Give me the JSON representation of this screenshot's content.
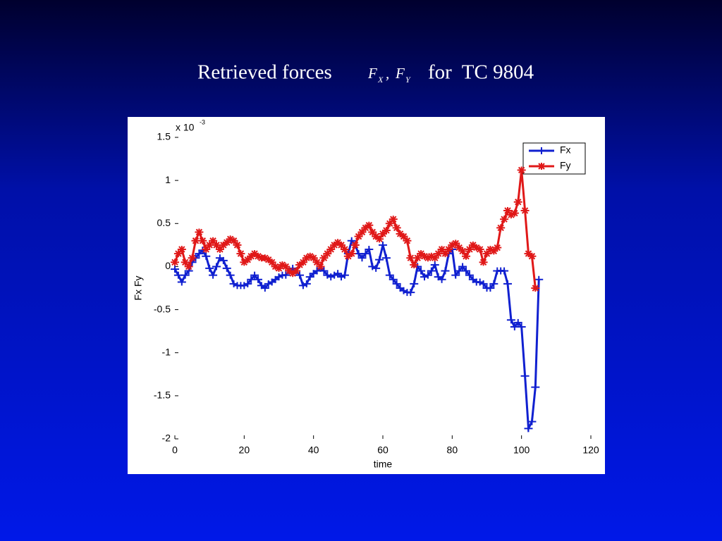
{
  "chart_data": {
    "type": "line",
    "title": "Retrieved forces",
    "title_math": [
      {
        "base": "F",
        "sub": "X"
      },
      {
        "base": "F",
        "sub": "Y"
      }
    ],
    "title_sep": ",",
    "title_suffix": "for  TC 9804",
    "xlabel": "time",
    "ylabel": "Fx Fy",
    "y_multiplier": "x 10",
    "y_exponent": "-3",
    "xlim": [
      0,
      120
    ],
    "xticks": [
      0,
      20,
      40,
      60,
      80,
      100,
      120
    ],
    "ylim": [
      -2,
      1.5
    ],
    "yticks": [
      1.5,
      1,
      0.5,
      0,
      -0.5,
      -1,
      -1.5,
      -2
    ],
    "legend": "upper right",
    "x": [
      0,
      1,
      2,
      3,
      4,
      5,
      6,
      7,
      8,
      9,
      10,
      11,
      12,
      13,
      14,
      15,
      16,
      17,
      18,
      19,
      20,
      21,
      22,
      23,
      24,
      25,
      26,
      27,
      28,
      29,
      30,
      31,
      32,
      33,
      34,
      35,
      36,
      37,
      38,
      39,
      40,
      41,
      42,
      43,
      44,
      45,
      46,
      47,
      48,
      49,
      50,
      51,
      52,
      53,
      54,
      55,
      56,
      57,
      58,
      59,
      60,
      61,
      62,
      63,
      64,
      65,
      66,
      67,
      68,
      69,
      70,
      71,
      72,
      73,
      74,
      75,
      76,
      77,
      78,
      79,
      80,
      81,
      82,
      83,
      84,
      85,
      86,
      87,
      88,
      89,
      90,
      91,
      92,
      93,
      94,
      95,
      96,
      97,
      98,
      99,
      100,
      101,
      102,
      103,
      104,
      105
    ],
    "series": [
      {
        "name": "Fx",
        "color": "#1020d0",
        "marker": "plus",
        "values": [
          -0.03,
          -0.1,
          -0.18,
          -0.1,
          -0.05,
          0.05,
          0.1,
          0.15,
          0.19,
          0.12,
          -0.02,
          -0.1,
          0,
          0.1,
          0.07,
          -0.02,
          -0.1,
          -0.2,
          -0.22,
          -0.22,
          -0.22,
          -0.2,
          -0.15,
          -0.1,
          -0.15,
          -0.22,
          -0.25,
          -0.2,
          -0.18,
          -0.15,
          -0.12,
          -0.1,
          -0.1,
          -0.05,
          -0.02,
          -0.05,
          -0.1,
          -0.22,
          -0.2,
          -0.12,
          -0.08,
          -0.05,
          -0.02,
          -0.05,
          -0.1,
          -0.12,
          -0.1,
          -0.08,
          -0.12,
          -0.1,
          0.15,
          0.3,
          0.25,
          0.15,
          0.1,
          0.15,
          0.2,
          0,
          -0.02,
          0.08,
          0.25,
          0.1,
          -0.1,
          -0.15,
          -0.2,
          -0.25,
          -0.28,
          -0.3,
          -0.3,
          -0.2,
          0,
          -0.05,
          -0.12,
          -0.1,
          -0.05,
          0.02,
          -0.12,
          -0.15,
          -0.05,
          0.15,
          0.2,
          -0.1,
          -0.05,
          0,
          -0.05,
          -0.1,
          -0.15,
          -0.18,
          -0.18,
          -0.2,
          -0.25,
          -0.25,
          -0.2,
          -0.05,
          -0.05,
          -0.05,
          -0.2,
          -0.62,
          -0.7,
          -0.65,
          -0.7,
          -1.27,
          -1.88,
          -1.8,
          -1.4,
          -0.15
        ]
      },
      {
        "name": "Fy",
        "color": "#e01818",
        "marker": "star",
        "values": [
          0.05,
          0.15,
          0.2,
          0.05,
          0,
          0.1,
          0.3,
          0.4,
          0.3,
          0.2,
          0.25,
          0.3,
          0.25,
          0.2,
          0.25,
          0.28,
          0.32,
          0.3,
          0.25,
          0.15,
          0.05,
          0.08,
          0.12,
          0.15,
          0.12,
          0.1,
          0.1,
          0.08,
          0.05,
          0,
          -0.02,
          0.02,
          0,
          -0.05,
          -0.08,
          -0.05,
          0.02,
          0.05,
          0.1,
          0.12,
          0.1,
          0.05,
          0,
          0.1,
          0.15,
          0.2,
          0.25,
          0.28,
          0.25,
          0.2,
          0.12,
          0.15,
          0.25,
          0.35,
          0.4,
          0.45,
          0.48,
          0.4,
          0.35,
          0.32,
          0.38,
          0.42,
          0.5,
          0.55,
          0.45,
          0.38,
          0.35,
          0.3,
          0.1,
          0.02,
          0.1,
          0.15,
          0.12,
          0.1,
          0.12,
          0.1,
          0.15,
          0.2,
          0.15,
          0.2,
          0.25,
          0.27,
          0.22,
          0.18,
          0.12,
          0.2,
          0.25,
          0.22,
          0.2,
          0.05,
          0.15,
          0.2,
          0.18,
          0.22,
          0.45,
          0.55,
          0.65,
          0.6,
          0.62,
          0.75,
          1.12,
          0.65,
          0.15,
          0.12,
          -0.25,
          null
        ]
      }
    ]
  }
}
